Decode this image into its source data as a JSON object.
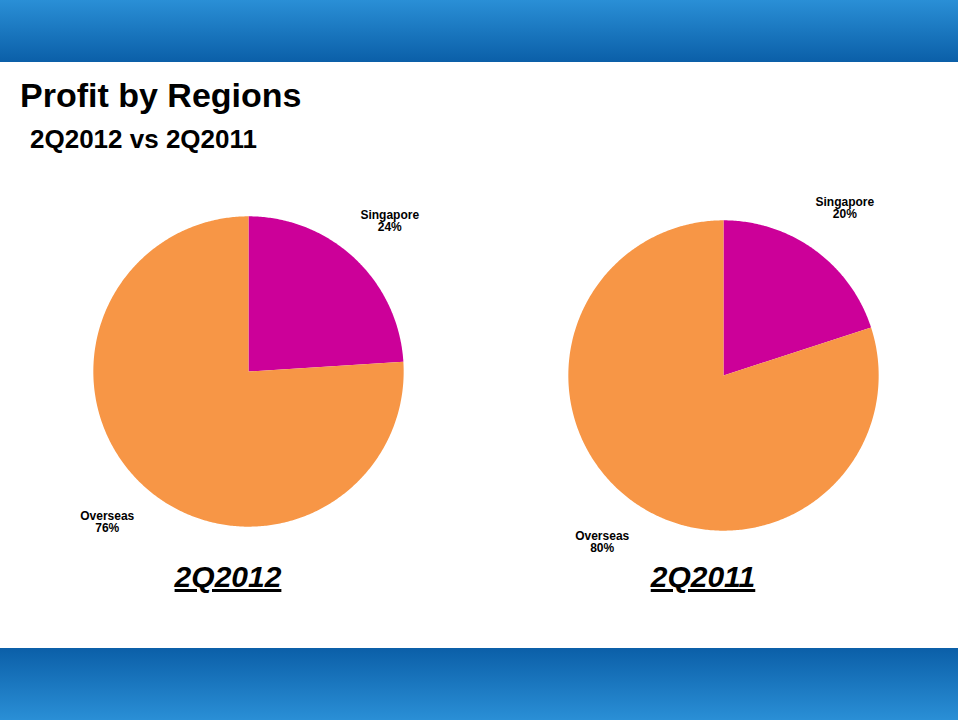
{
  "title": "Profit by Regions",
  "subtitle": "2Q2012 vs 2Q2011",
  "chart_data": [
    {
      "type": "pie",
      "title": "2Q2012",
      "categories": [
        "Singapore",
        "Overseas"
      ],
      "values": [
        24,
        76
      ],
      "value_labels": [
        "24%",
        "76%"
      ],
      "colors": [
        "#cc0099",
        "#f79646"
      ],
      "data_labels": true
    },
    {
      "type": "pie",
      "title": "2Q2011",
      "categories": [
        "Singapore",
        "Overseas"
      ],
      "values": [
        20,
        80
      ],
      "value_labels": [
        "20%",
        "80%"
      ],
      "colors": [
        "#cc0099",
        "#f79646"
      ],
      "data_labels": true
    }
  ]
}
